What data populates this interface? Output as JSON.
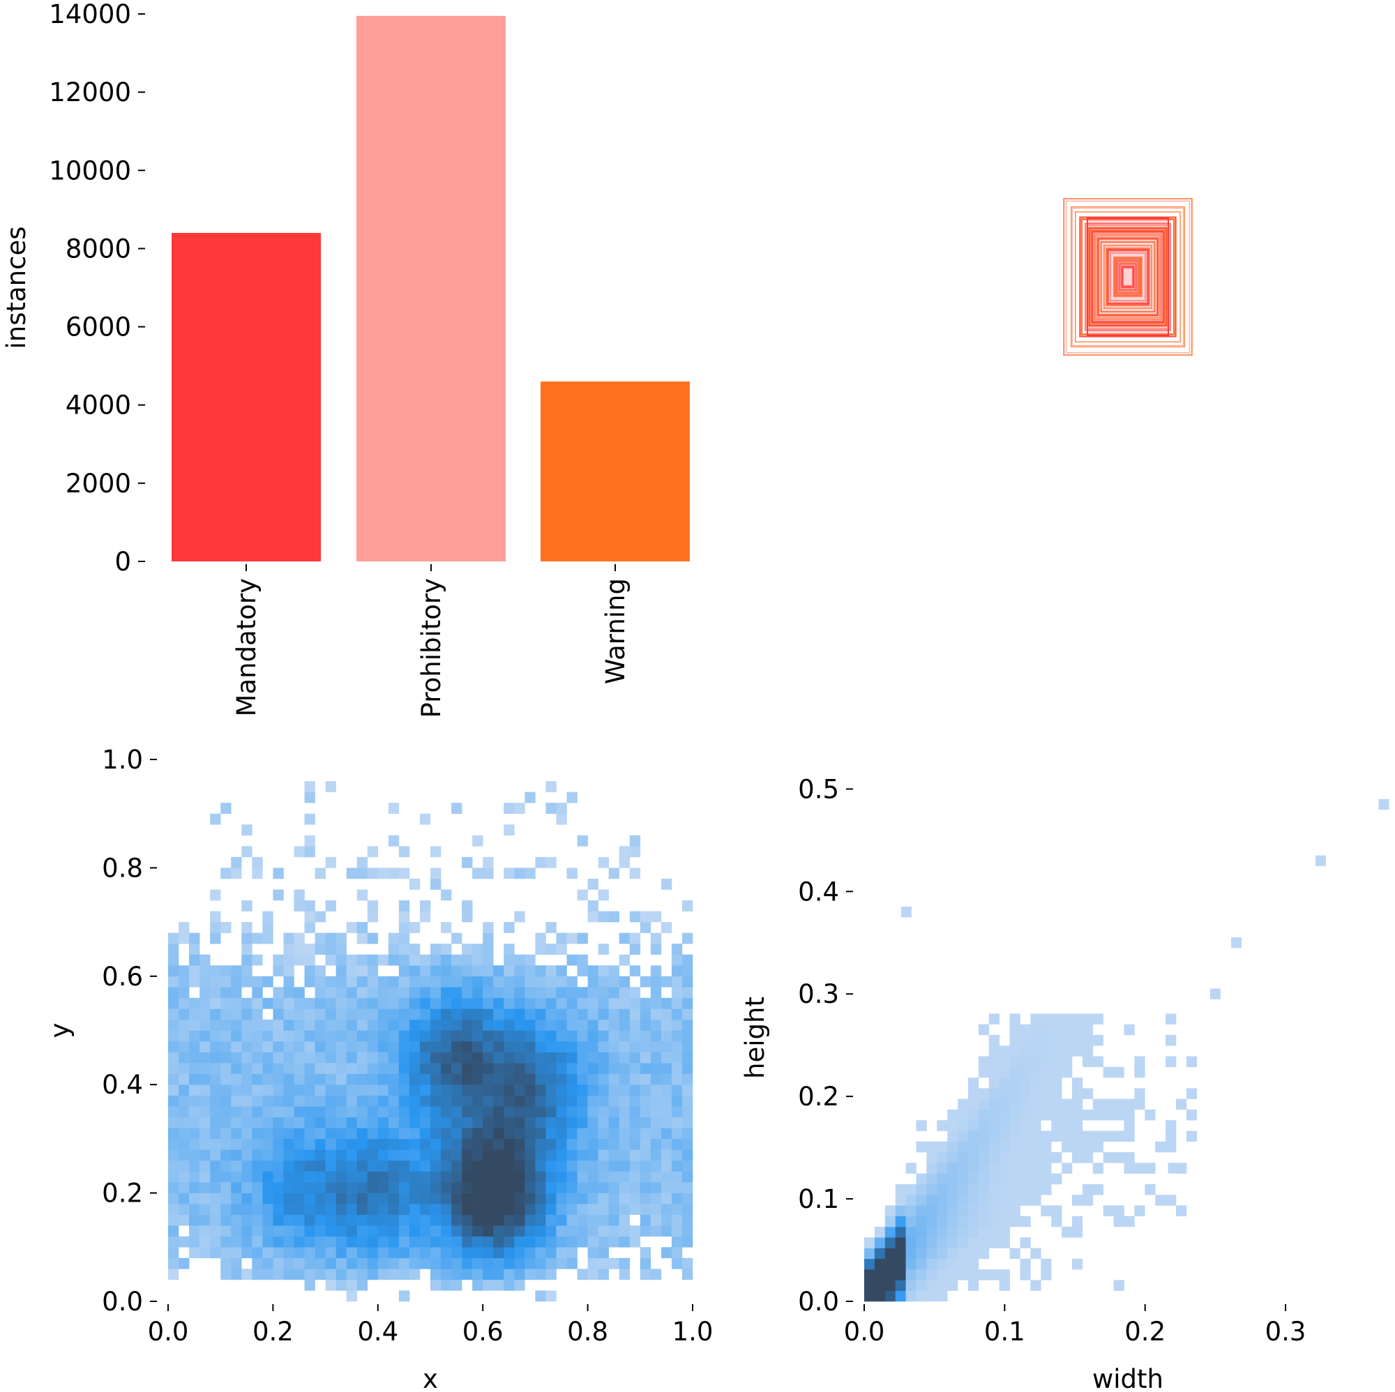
{
  "chart_data": [
    {
      "type": "bar",
      "categories": [
        "Mandatory",
        "Prohibitory",
        "Warning"
      ],
      "values": [
        8400,
        13950,
        4600
      ],
      "colors": [
        "#ff3838",
        "#ff9d97",
        "#ff701f"
      ],
      "xlabel": "",
      "ylabel": "instances",
      "ylim": [
        0,
        14000
      ],
      "yticks": [
        0,
        2000,
        4000,
        6000,
        8000,
        10000,
        12000,
        14000
      ],
      "grid": false
    },
    {
      "type": "heatmap",
      "description_kind": "bounding-box overlay",
      "colors": [
        "#ff3838",
        "#ff9d97",
        "#ff701f"
      ]
    },
    {
      "type": "heatmap",
      "xlabel": "x",
      "ylabel": "y",
      "xlim": [
        0,
        1
      ],
      "ylim": [
        0,
        1
      ],
      "xticks": [
        0.0,
        0.2,
        0.4,
        0.6,
        0.8,
        1.0
      ],
      "yticks": [
        0.0,
        0.2,
        0.4,
        0.6,
        0.8,
        1.0
      ],
      "xtick_labels": [
        "0.0",
        "0.2",
        "0.4",
        "0.6",
        "0.8",
        "1.0"
      ],
      "ytick_labels": [
        "0.0",
        "0.2",
        "0.4",
        "0.6",
        "0.8",
        "1.0"
      ],
      "bins": 50,
      "color": "#1f8ff0",
      "density_hotspots": [
        {
          "x": 0.62,
          "y": 0.2,
          "strength": 1.0
        },
        {
          "x": 0.55,
          "y": 0.45,
          "strength": 0.6
        },
        {
          "x": 0.7,
          "y": 0.4,
          "strength": 0.5
        },
        {
          "x": 0.4,
          "y": 0.2,
          "strength": 0.45
        },
        {
          "x": 0.25,
          "y": 0.2,
          "strength": 0.35
        }
      ]
    },
    {
      "type": "heatmap",
      "xlabel": "width",
      "ylabel": "height",
      "xlim": [
        0,
        0.37
      ],
      "ylim": [
        0,
        0.52
      ],
      "xticks": [
        0.0,
        0.1,
        0.2,
        0.3
      ],
      "yticks": [
        0.0,
        0.1,
        0.2,
        0.3,
        0.4,
        0.5
      ],
      "xtick_labels": [
        "0.0",
        "0.1",
        "0.2",
        "0.3"
      ],
      "ytick_labels": [
        "0.0",
        "0.1",
        "0.2",
        "0.3",
        "0.4",
        "0.5"
      ],
      "bins": 50,
      "color": "#1f8ff0",
      "trend_lines": [
        {
          "slope": 1.95,
          "strength": 1.0
        },
        {
          "slope": 0.9,
          "strength": 0.55
        }
      ],
      "outliers": [
        {
          "x": 0.37,
          "y": 0.485
        },
        {
          "x": 0.325,
          "y": 0.43
        },
        {
          "x": 0.265,
          "y": 0.35
        },
        {
          "x": 0.25,
          "y": 0.3
        },
        {
          "x": 0.03,
          "y": 0.38
        },
        {
          "x": 0.22,
          "y": 0.13
        }
      ]
    }
  ]
}
